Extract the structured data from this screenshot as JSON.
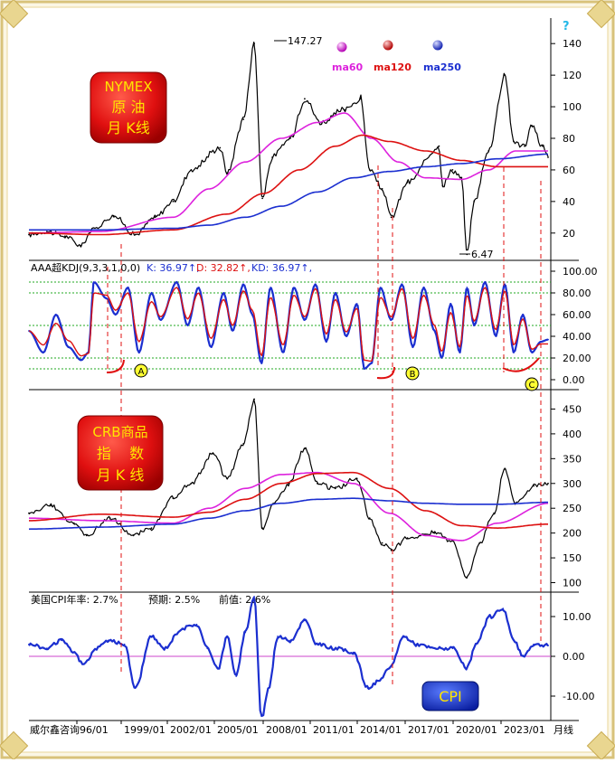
{
  "colors": {
    "price": "#000000",
    "ma60": "#dd22dd",
    "ma120": "#dd1111",
    "ma250": "#1b2fd0",
    "kdj_k": "#1b2fd0",
    "kdj_d": "#dd1111",
    "cpi": "#1b2fd0",
    "frame_gold": "#d8c27a",
    "grid_green": "#22aa22",
    "marker_red": "#e01010"
  },
  "badges": {
    "oil": {
      "line1": "NYMEX",
      "line2": "原  油",
      "line3": "月 K线"
    },
    "crb": {
      "line1": "CRB商品",
      "line2": "指    数",
      "line3": "月 K 线"
    },
    "cpi": "CPI"
  },
  "legend": {
    "ma60": "ma60",
    "ma120": "ma120",
    "ma250": "ma250",
    "help": "?"
  },
  "oil_annotations": {
    "high": "147.27",
    "low": "6.47"
  },
  "kdj_header": {
    "name": "AAA超KDJ(9,3,3,1,0,0)",
    "k": "K: 36.97↑,",
    "d": "D: 32.82↑,",
    "kd": "KD: 36.97↑,"
  },
  "kdj_markers": [
    "A",
    "B",
    "C"
  ],
  "cpi_header": {
    "rate": "美国CPI年率: 2.7%",
    "expected": "预期: 2.5%",
    "previous": "前值: 2.6%"
  },
  "x_axis": {
    "source": "威尔鑫咨询",
    "labels": [
      "96/01",
      "1999/01",
      "2002/01",
      "2005/01",
      "2008/01",
      "2011/01",
      "2014/01",
      "2017/01",
      "2020/01",
      "2023/01"
    ],
    "period": "月线"
  },
  "chart_data": [
    {
      "type": "line",
      "title": "NYMEX 原油 月K线",
      "x_range": [
        1996.0,
        2024.8
      ],
      "ylim": [
        5,
        155
      ],
      "y_ticks": [
        20,
        40,
        60,
        80,
        100,
        120,
        140
      ],
      "series": [
        {
          "name": "price",
          "x": [
            1996.0,
            1997.0,
            1998.0,
            1998.9,
            1999.5,
            2000.7,
            2001.9,
            2003.0,
            2004.0,
            2005.0,
            2006.6,
            2007.0,
            2007.9,
            2008.5,
            2008.95,
            2009.5,
            2010.5,
            2011.3,
            2012.2,
            2013.5,
            2014.4,
            2014.9,
            2015.6,
            2016.1,
            2017.0,
            2018.75,
            2018.95,
            2019.5,
            2020.0,
            2020.3,
            2020.7,
            2021.5,
            2022.4,
            2022.9,
            2023.5,
            2023.9,
            2024.5,
            2024.8
          ],
          "values": [
            19,
            21,
            18,
            12,
            22,
            31,
            19,
            30,
            40,
            60,
            74,
            58,
            92,
            140,
            42,
            68,
            80,
            105,
            90,
            98,
            105,
            60,
            48,
            30,
            52,
            75,
            50,
            60,
            55,
            6.5,
            40,
            72,
            120,
            78,
            75,
            88,
            75,
            68
          ]
        },
        {
          "name": "ma60",
          "x": [
            1996,
            2000,
            2004,
            2006,
            2008,
            2010,
            2012,
            2013.5,
            2015,
            2016.5,
            2018,
            2020,
            2021.5,
            2023,
            2024.8
          ],
          "values": [
            20,
            21,
            30,
            48,
            65,
            80,
            90,
            96,
            80,
            65,
            55,
            54,
            60,
            72,
            72
          ]
        },
        {
          "name": "ma120",
          "x": [
            1996,
            2000,
            2004,
            2007,
            2009,
            2011,
            2013,
            2014.5,
            2016,
            2018,
            2020,
            2022,
            2024.8
          ],
          "values": [
            20,
            19,
            22,
            32,
            45,
            60,
            75,
            82,
            78,
            72,
            66,
            62,
            62
          ]
        },
        {
          "name": "ma250",
          "x": [
            1996,
            2000,
            2004,
            2006,
            2008,
            2010,
            2012,
            2014,
            2016,
            2018,
            2020,
            2022,
            2024.8
          ],
          "values": [
            22,
            22,
            23,
            25,
            30,
            37,
            46,
            55,
            59,
            62,
            64,
            67,
            70
          ]
        }
      ],
      "annotations": [
        {
          "x": 2008.5,
          "y": 147.27,
          "text": "147.27"
        },
        {
          "x": 2020.3,
          "y": 6.47,
          "text": "6.47"
        }
      ]
    },
    {
      "type": "line",
      "title": "AAA超KDJ(9,3,3,1,0,0)",
      "x_range": [
        1996.0,
        2024.8
      ],
      "ylim": [
        -5,
        105
      ],
      "y_ticks": [
        0,
        20,
        40,
        60,
        80,
        100
      ],
      "reference_lines": [
        10,
        20,
        50,
        80,
        90
      ],
      "series": [
        {
          "name": "K",
          "x": [
            1996,
            1996.8,
            1997.5,
            1998.2,
            1998.9,
            1999.3,
            1999.6,
            2000.3,
            2000.8,
            2001.5,
            2002.1,
            2002.8,
            2003.3,
            2004.2,
            2004.8,
            2005.4,
            2006.1,
            2006.8,
            2007.3,
            2007.9,
            2008.4,
            2008.9,
            2009.4,
            2010.1,
            2010.7,
            2011.3,
            2011.9,
            2012.5,
            2013.0,
            2013.6,
            2014.2,
            2014.6,
            2015.0,
            2015.5,
            2016.1,
            2016.7,
            2017.3,
            2017.9,
            2018.5,
            2018.9,
            2019.4,
            2019.9,
            2020.3,
            2020.7,
            2021.3,
            2021.9,
            2022.4,
            2022.9,
            2023.4,
            2023.9,
            2024.4,
            2024.8
          ],
          "values": [
            45,
            25,
            60,
            30,
            18,
            25,
            90,
            75,
            60,
            85,
            25,
            80,
            55,
            90,
            50,
            85,
            30,
            80,
            45,
            88,
            60,
            15,
            85,
            25,
            85,
            55,
            88,
            35,
            80,
            40,
            70,
            10,
            15,
            85,
            55,
            88,
            30,
            85,
            45,
            20,
            70,
            25,
            85,
            50,
            90,
            40,
            88,
            25,
            60,
            25,
            35,
            37
          ]
        },
        {
          "name": "D",
          "x": [
            1996,
            1996.8,
            1997.5,
            1998.2,
            1998.9,
            1999.3,
            1999.6,
            2000.3,
            2000.8,
            2001.5,
            2002.1,
            2002.8,
            2003.3,
            2004.2,
            2004.8,
            2005.4,
            2006.1,
            2006.8,
            2007.3,
            2007.9,
            2008.4,
            2008.9,
            2009.4,
            2010.1,
            2010.7,
            2011.3,
            2011.9,
            2012.5,
            2013.0,
            2013.6,
            2014.2,
            2014.6,
            2015.0,
            2015.5,
            2016.1,
            2016.7,
            2017.3,
            2017.9,
            2018.5,
            2018.9,
            2019.4,
            2019.9,
            2020.3,
            2020.7,
            2021.3,
            2021.9,
            2022.4,
            2022.9,
            2023.4,
            2023.9,
            2024.4,
            2024.8
          ],
          "values": [
            45,
            32,
            52,
            36,
            22,
            24,
            80,
            78,
            64,
            80,
            35,
            72,
            58,
            85,
            56,
            80,
            38,
            74,
            50,
            82,
            64,
            22,
            76,
            32,
            78,
            58,
            84,
            42,
            74,
            44,
            66,
            18,
            17,
            76,
            58,
            84,
            38,
            78,
            50,
            26,
            62,
            30,
            78,
            54,
            85,
            46,
            82,
            32,
            56,
            28,
            33,
            33
          ]
        }
      ],
      "current": {
        "K": 36.97,
        "D": 32.82,
        "KD": 36.97
      }
    },
    {
      "type": "line",
      "title": "CRB商品 指数 月K线",
      "x_range": [
        1996.0,
        2024.8
      ],
      "ylim": [
        90,
        480
      ],
      "y_ticks": [
        100,
        150,
        200,
        250,
        300,
        350,
        400,
        450
      ],
      "series": [
        {
          "name": "price",
          "x": [
            1996,
            1997.2,
            1998.5,
            1999.2,
            2000.5,
            2001.8,
            2002.8,
            2004.0,
            2005.0,
            2006.2,
            2007.0,
            2007.9,
            2008.5,
            2008.95,
            2009.6,
            2010.4,
            2011.3,
            2012.0,
            2013.0,
            2014.2,
            2014.9,
            2015.6,
            2016.1,
            2017.0,
            2018.5,
            2019.5,
            2020.3,
            2021.0,
            2021.8,
            2022.4,
            2023.0,
            2024.0,
            2024.8
          ],
          "values": [
            240,
            255,
            220,
            195,
            230,
            195,
            210,
            270,
            300,
            360,
            310,
            380,
            470,
            210,
            260,
            300,
            370,
            300,
            290,
            310,
            230,
            180,
            165,
            190,
            200,
            185,
            110,
            180,
            240,
            330,
            260,
            295,
            300
          ]
        },
        {
          "name": "ma60",
          "x": [
            1996,
            2000,
            2004,
            2006,
            2008,
            2010,
            2012,
            2014,
            2016,
            2018,
            2020,
            2022,
            2024.8
          ],
          "values": [
            230,
            225,
            220,
            250,
            290,
            318,
            322,
            300,
            240,
            195,
            185,
            220,
            260
          ]
        },
        {
          "name": "ma120",
          "x": [
            1996,
            2000,
            2004,
            2006,
            2008,
            2010,
            2012,
            2014,
            2016,
            2018,
            2020,
            2022,
            2024.8
          ],
          "values": [
            225,
            238,
            232,
            242,
            268,
            300,
            320,
            322,
            290,
            245,
            215,
            210,
            218
          ]
        },
        {
          "name": "ma250",
          "x": [
            1996,
            2000,
            2004,
            2006,
            2008,
            2010,
            2012,
            2014,
            2016,
            2018,
            2020,
            2022,
            2024.8
          ],
          "values": [
            208,
            212,
            218,
            230,
            245,
            260,
            268,
            270,
            265,
            260,
            258,
            258,
            262
          ]
        }
      ]
    },
    {
      "type": "line",
      "title": "美国CPI年率",
      "x_range": [
        1996.0,
        2024.8
      ],
      "ylim": [
        -15,
        15
      ],
      "y_ticks": [
        -10,
        0,
        10
      ],
      "reference_lines": [
        0
      ],
      "series": [
        {
          "name": "CPI",
          "x": [
            1996,
            1997.0,
            1997.8,
            1998.5,
            1999.0,
            1999.8,
            2000.4,
            2001.3,
            2001.9,
            2002.8,
            2003.5,
            2004.5,
            2005.3,
            2005.9,
            2006.5,
            2007.0,
            2007.5,
            2008.0,
            2008.5,
            2008.9,
            2009.3,
            2009.8,
            2010.5,
            2011.3,
            2012.0,
            2013.0,
            2014.0,
            2014.8,
            2015.5,
            2016.0,
            2016.8,
            2017.5,
            2018.5,
            2019.5,
            2020.3,
            2020.8,
            2021.6,
            2022.3,
            2022.9,
            2023.4,
            2024.0,
            2024.8
          ],
          "values": [
            3,
            2,
            4,
            1,
            -2,
            2,
            4,
            3,
            -8,
            5,
            2,
            7,
            8,
            2,
            -3,
            5,
            -5,
            6,
            15,
            -16,
            -8,
            5,
            4,
            9,
            3,
            2,
            1,
            -8,
            -6,
            -3,
            5,
            3,
            2,
            2,
            -3,
            3,
            10,
            12,
            4,
            0,
            3,
            2.7
          ]
        }
      ],
      "current": {
        "rate": 2.7,
        "expected": 2.5,
        "previous": 2.6
      }
    }
  ]
}
